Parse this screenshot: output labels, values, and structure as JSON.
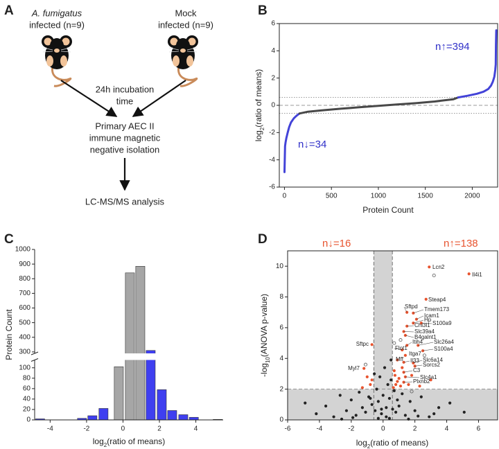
{
  "panels": [
    "A",
    "B",
    "C",
    "D"
  ],
  "diagram": {
    "group1": {
      "species": "A. fumigatus",
      "line2": "infected (n=9)"
    },
    "group2": {
      "line1": "Mock",
      "line2": "infected (n=9)"
    },
    "step1": [
      "24h incubation",
      "time"
    ],
    "step2": [
      "Primary AEC II",
      "immune magnetic",
      "negative isolation"
    ],
    "step3": "LC-MS/MS analysis"
  },
  "chart_data": [
    {
      "type": "line",
      "xlabel": "Protein Count",
      "ylabel": [
        "log",
        "2",
        "(ratio of means)"
      ],
      "xlim": [
        -55,
        2270
      ],
      "ylim": [
        -6,
        6
      ],
      "xticks": [
        0,
        500,
        1000,
        1500,
        2000
      ],
      "yticks": [
        -6,
        -4,
        -2,
        0,
        2,
        4,
        6
      ],
      "hlines": [
        {
          "value": 0,
          "style": "dashed"
        },
        {
          "value": 0.585,
          "style": "dotted"
        },
        {
          "value": -0.585,
          "style": "dotted"
        }
      ],
      "annotations": [
        "n↑=394",
        "n↓=34"
      ],
      "annotation_color": "#2f2fc8",
      "frame": true,
      "series": [
        {
          "color": "#4343d8",
          "x": [
            0,
            6,
            12,
            20,
            34,
            50,
            70,
            100,
            130,
            160
          ],
          "values": [
            -4.9,
            -3.0,
            -2.7,
            -2.4,
            -2.0,
            -1.6,
            -1.25,
            -0.95,
            -0.75,
            -0.6
          ]
        },
        {
          "color": "#484848",
          "x": [
            160,
            250,
            400,
            600,
            800,
            1000,
            1200,
            1400,
            1600,
            1800,
            1850
          ],
          "values": [
            -0.6,
            -0.47,
            -0.37,
            -0.25,
            -0.14,
            -0.04,
            0.06,
            0.16,
            0.28,
            0.45,
            0.58
          ]
        },
        {
          "color": "#4343d8",
          "x": [
            1850,
            1950,
            2050,
            2120,
            2170,
            2200,
            2220,
            2235,
            2245,
            2250,
            2252,
            2255,
            2256
          ],
          "values": [
            0.58,
            0.7,
            0.85,
            1.0,
            1.2,
            1.45,
            1.75,
            2.1,
            2.6,
            3.0,
            4.4,
            5.4,
            5.5
          ]
        }
      ]
    },
    {
      "type": "bar",
      "xlabel": [
        "log",
        "2",
        "(ratio of means)"
      ],
      "ylabel": "Protein Count",
      "xlim": [
        -4.85,
        5.5
      ],
      "ylim": [
        0,
        1000
      ],
      "axis_break": [
        115,
        290
      ],
      "xticks": [
        -4,
        -2,
        0,
        2,
        4
      ],
      "yticks": [
        0,
        20,
        40,
        60,
        80,
        100,
        300,
        400,
        500,
        600,
        700,
        800,
        900,
        1000
      ],
      "x": [
        -4.55,
        -2.25,
        -1.68,
        -1.07,
        -0.23,
        0.38,
        0.95,
        1.52,
        2.13,
        2.7,
        3.31,
        3.89,
        5.2
      ],
      "values": [
        2,
        3,
        8,
        22,
        102,
        840,
        885,
        310,
        58,
        18,
        10,
        5,
        1
      ],
      "colors": [
        "#3f3ff0",
        "#3f3ff0",
        "#3f3ff0",
        "#3f3ff0",
        "#a6a6a6",
        "#a6a6a6",
        "#a6a6a6",
        "#3f3ff0",
        "#3f3ff0",
        "#3f3ff0",
        "#3f3ff0",
        "#3f3ff0",
        "#3f3ff0"
      ]
    },
    {
      "type": "scatter",
      "xlabel": [
        "log",
        "2",
        "(ratio of means)"
      ],
      "ylabel": [
        "-log",
        "10",
        "(ANOVA p-value)"
      ],
      "xlim": [
        -6,
        7.2
      ],
      "ylim": [
        0,
        11
      ],
      "xticks": [
        -6,
        -4,
        -2,
        0,
        2,
        4,
        6
      ],
      "yticks": [
        0,
        2,
        4,
        6,
        8,
        10
      ],
      "hlines": [
        {
          "value": 2,
          "style": "dashed"
        }
      ],
      "vlines": [
        {
          "value": -0.585,
          "style": "dashed"
        },
        {
          "value": 0.585,
          "style": "dashed"
        }
      ],
      "shade": true,
      "frame": true,
      "annotations": [
        "n↓=16",
        "n↑=138"
      ],
      "annotation_color": "#e8542f",
      "series": [
        {
          "color": "#222222",
          "x": [
            -4.9,
            -4.2,
            -3.6,
            -3.1,
            -2.7,
            -2.3,
            -2.0,
            -1.7,
            -1.5,
            -1.3,
            -1.1,
            -0.9,
            -0.8,
            -0.7,
            -0.55,
            -0.5,
            -0.4,
            -0.3,
            -0.2,
            -0.1,
            0,
            0.1,
            0.2,
            0.3,
            0.4,
            0.5,
            0.6,
            0.7,
            0.8,
            0.9,
            1.0,
            1.2,
            1.4,
            1.7,
            2.0,
            2.4,
            2.9,
            3.5,
            4.2,
            5.1,
            -0.3,
            0.2,
            0.4,
            -0.1,
            0.5,
            -2.6,
            2.2,
            -1.9,
            1.6,
            3.2
          ],
          "values": [
            1.1,
            0.4,
            0.9,
            0.2,
            1.6,
            0.6,
            1.3,
            0.3,
            1.8,
            0.8,
            0.5,
            1.5,
            1.4,
            1.0,
            3.0,
            0.6,
            2.0,
            1.2,
            2.8,
            0.4,
            1.6,
            3.4,
            0.8,
            2.3,
            1.4,
            2.6,
            0.7,
            1.9,
            0.5,
            1.3,
            0.9,
            1.7,
            0.3,
            1.2,
            0.6,
            1.5,
            0.2,
            0.8,
            1.1,
            0.5,
            0.1,
            0.2,
            0.1,
            0.7,
            3.9,
            0.05,
            0.25,
            0.15,
            0.05,
            0.4
          ]
        },
        {
          "color": "#e8542f",
          "x": [
            2.9,
            5.4,
            2.7,
            1.5,
            1.9,
            2.1,
            1.9,
            1.5,
            2.4,
            1.3,
            1.4,
            1.5,
            2.2,
            1.2,
            2.5,
            1.4,
            0.9,
            1.3,
            1.9,
            2.0,
            1.3,
            1.4,
            1.3,
            -0.7,
            -1.2,
            0.8,
            1.0,
            0.7,
            1.1,
            0.9,
            1.6,
            0.75,
            1.2,
            -0.8,
            -1.0,
            -0.7,
            2.3,
            1.8,
            0.65,
            -1.3,
            3.0
          ],
          "values": [
            9.95,
            9.5,
            7.85,
            7.0,
            6.95,
            6.55,
            6.3,
            6.1,
            6.3,
            5.75,
            5.5,
            4.85,
            4.85,
            4.55,
            4.5,
            4.2,
            3.9,
            3.75,
            3.7,
            3.5,
            3.1,
            2.8,
            2.45,
            4.9,
            3.35,
            2.3,
            2.7,
            3.2,
            2.2,
            2.5,
            2.3,
            2.9,
            3.4,
            2.3,
            2.8,
            2.6,
            2.2,
            2.9,
            2.1,
            2.1,
            2.6
          ],
          "labels": [
            "Lcn2",
            "Il4i1",
            "Steap4",
            "Sftpd",
            "Tmem173",
            "Icam1",
            "Hp",
            "Chi3l1",
            "S100a9",
            "Slc39a4",
            "B4galnt1",
            "Itih4",
            "Slc26a4",
            "Flot1",
            "S100a4",
            "Itga7",
            "Mff",
            "Il33",
            "Slc6a14",
            "Sorcs2",
            "C3",
            "Slc4a1",
            "Plxnb2",
            "Sftpc",
            "Myl7",
            null,
            null,
            null,
            null,
            null,
            null,
            null,
            null,
            null,
            null,
            null,
            null,
            null,
            null,
            null,
            null
          ]
        },
        {
          "color": "#555555",
          "hollow": true,
          "x": [
            3.2,
            1.1,
            -1.1,
            2.6,
            0.7,
            1.8
          ],
          "values": [
            9.4,
            5.2,
            3.6,
            4.2,
            5.0,
            1.85
          ]
        }
      ]
    }
  ]
}
